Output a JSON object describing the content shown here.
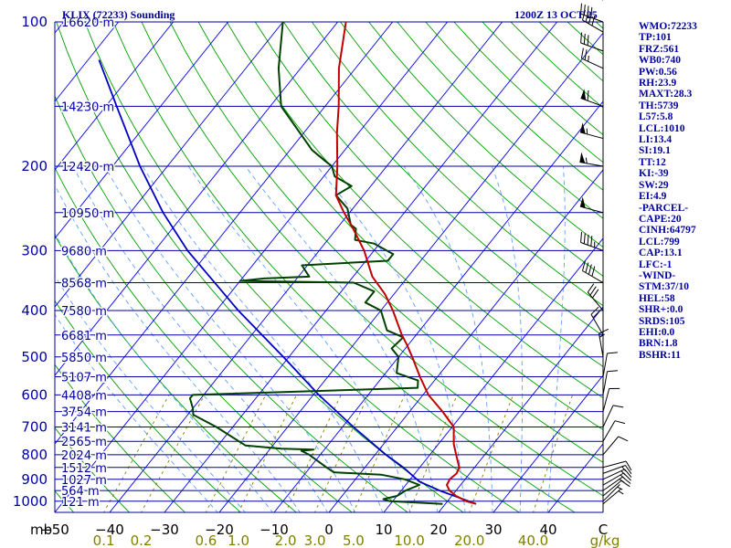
{
  "header": {
    "title": "KLIX (72233) Sounding",
    "datetime": "1200Z 13 OCT 25"
  },
  "colors": {
    "isobar": "#0000a0",
    "isotherm": "#0000ff",
    "dry_adiabat": "#00a000",
    "moist_adiabat": "#60a0ff",
    "mixing_ratio": "#808000",
    "temperature": "#c00000",
    "dewpoint": "#004000",
    "parcel": "#0000c0",
    "text": "#0000a0",
    "axis_x": "#000000",
    "axis_mr": "#808000"
  },
  "chart_data": {
    "type": "skew-t",
    "title": "KLIX (72233) Sounding",
    "subtitle": "1200Z 13 OCT 25",
    "pressure_unit": "mb",
    "mixing_ratio_unit": "g/kg",
    "pressure_ticks": [
      "100",
      "200",
      "300",
      "400",
      "500",
      "600",
      "700",
      "800",
      "900",
      "1000"
    ],
    "temperature_ticks": [
      "−50",
      "−40",
      "−30",
      "−20",
      "−10",
      "0",
      "10",
      "20",
      "30",
      "40",
      "C"
    ],
    "mixing_ratio_ticks": [
      "0.1",
      "0.2",
      "0.6",
      "1.0",
      "2.0",
      "3.0",
      "5.0",
      "10.0",
      "20.0",
      "40.0"
    ],
    "height_labels": [
      {
        "p": 100,
        "text": "16620 m"
      },
      {
        "p": 150,
        "text": "14230 m"
      },
      {
        "p": 200,
        "text": "12420 m"
      },
      {
        "p": 250,
        "text": "10950 m"
      },
      {
        "p": 300,
        "text": "9680 m"
      },
      {
        "p": 350,
        "text": "8568 m"
      },
      {
        "p": 400,
        "text": "7580 m"
      },
      {
        "p": 450,
        "text": "6681 m"
      },
      {
        "p": 500,
        "text": "5850 m"
      },
      {
        "p": 550,
        "text": "5107 m"
      },
      {
        "p": 600,
        "text": "4408 m"
      },
      {
        "p": 650,
        "text": "3754 m"
      },
      {
        "p": 700,
        "text": "3141 m"
      },
      {
        "p": 750,
        "text": "2565 m"
      },
      {
        "p": 800,
        "text": "2024 m"
      },
      {
        "p": 850,
        "text": "1512 m"
      },
      {
        "p": 900,
        "text": "1027 m"
      },
      {
        "p": 950,
        "text": "564 m"
      },
      {
        "p": 1000,
        "text": "121 m"
      }
    ],
    "temperature_profile": [
      {
        "p": 1013,
        "t": 25.6
      },
      {
        "p": 1000,
        "t": 23.4
      },
      {
        "p": 975,
        "t": 20.8
      },
      {
        "p": 950,
        "t": 18.8
      },
      {
        "p": 925,
        "t": 17.5
      },
      {
        "p": 900,
        "t": 17.2
      },
      {
        "p": 875,
        "t": 17.6
      },
      {
        "p": 850,
        "t": 17.2
      },
      {
        "p": 800,
        "t": 14.8
      },
      {
        "p": 760,
        "t": 12.8
      },
      {
        "p": 700,
        "t": 10.3
      },
      {
        "p": 650,
        "t": 6.0
      },
      {
        "p": 600,
        "t": 1.0
      },
      {
        "p": 550,
        "t": -3.2
      },
      {
        "p": 500,
        "t": -7.5
      },
      {
        "p": 470,
        "t": -10.4
      },
      {
        "p": 450,
        "t": -12.6
      },
      {
        "p": 400,
        "t": -17.8
      },
      {
        "p": 370,
        "t": -21.6
      },
      {
        "p": 340,
        "t": -26.5
      },
      {
        "p": 300,
        "t": -31.8
      },
      {
        "p": 270,
        "t": -37.0
      },
      {
        "p": 250,
        "t": -41.0
      },
      {
        "p": 230,
        "t": -45.0
      },
      {
        "p": 200,
        "t": -49.0
      },
      {
        "p": 170,
        "t": -54.0
      },
      {
        "p": 150,
        "t": -57.5
      },
      {
        "p": 125,
        "t": -63.0
      },
      {
        "p": 100,
        "t": -68.5
      },
      {
        "p": 85,
        "t": -71.0
      }
    ],
    "dewpoint_profile": [
      {
        "p": 1013,
        "t": 19.5
      },
      {
        "p": 1000,
        "t": 9.5
      },
      {
        "p": 990,
        "t": 8.0
      },
      {
        "p": 975,
        "t": 10.0
      },
      {
        "p": 950,
        "t": 10.8
      },
      {
        "p": 925,
        "t": 12.5
      },
      {
        "p": 900,
        "t": 9.0
      },
      {
        "p": 880,
        "t": 4.0
      },
      {
        "p": 870,
        "t": -5.0
      },
      {
        "p": 850,
        "t": -7.0
      },
      {
        "p": 800,
        "t": -12.0
      },
      {
        "p": 785,
        "t": -14.0
      },
      {
        "p": 780,
        "t": -12.0
      },
      {
        "p": 777,
        "t": -18.0
      },
      {
        "p": 765,
        "t": -25.0
      },
      {
        "p": 700,
        "t": -33.0
      },
      {
        "p": 660,
        "t": -39.0
      },
      {
        "p": 640,
        "t": -40.0
      },
      {
        "p": 610,
        "t": -42.0
      },
      {
        "p": 600,
        "t": -42.0
      },
      {
        "p": 580,
        "t": -2.0
      },
      {
        "p": 560,
        "t": -3.0
      },
      {
        "p": 540,
        "t": -8.0
      },
      {
        "p": 500,
        "t": -10.0
      },
      {
        "p": 480,
        "t": -12.5
      },
      {
        "p": 455,
        "t": -12.0
      },
      {
        "p": 440,
        "t": -16.0
      },
      {
        "p": 400,
        "t": -20.0
      },
      {
        "p": 385,
        "t": -24.0
      },
      {
        "p": 365,
        "t": -24.0
      },
      {
        "p": 350,
        "t": -29.0
      },
      {
        "p": 347,
        "t": -50.0
      },
      {
        "p": 343,
        "t": -46.0
      },
      {
        "p": 340,
        "t": -38.0
      },
      {
        "p": 322,
        "t": -41.0
      },
      {
        "p": 315,
        "t": -26.0
      },
      {
        "p": 305,
        "t": -26.0
      },
      {
        "p": 290,
        "t": -31.0
      },
      {
        "p": 285,
        "t": -35.0
      },
      {
        "p": 270,
        "t": -36.5
      },
      {
        "p": 265,
        "t": -38.0
      },
      {
        "p": 245,
        "t": -41.0
      },
      {
        "p": 230,
        "t": -45.0
      },
      {
        "p": 220,
        "t": -43.5
      },
      {
        "p": 210,
        "t": -48.0
      },
      {
        "p": 200,
        "t": -50.0
      },
      {
        "p": 195,
        "t": -52.0
      },
      {
        "p": 185,
        "t": -56.0
      },
      {
        "p": 150,
        "t": -68.0
      },
      {
        "p": 125,
        "t": -74.0
      },
      {
        "p": 100,
        "t": -80.0
      },
      {
        "p": 85,
        "t": -84.0
      }
    ],
    "parcel_path": [
      {
        "p": 1013,
        "t": 25.6
      },
      {
        "p": 950,
        "t": 17.0
      },
      {
        "p": 910,
        "t": 12.0
      },
      {
        "p": 850,
        "t": 7.0
      },
      {
        "p": 800,
        "t": 2.0
      },
      {
        "p": 700,
        "t": -8.0
      },
      {
        "p": 600,
        "t": -19.0
      },
      {
        "p": 500,
        "t": -31.0
      },
      {
        "p": 400,
        "t": -46.0
      },
      {
        "p": 300,
        "t": -64.0
      },
      {
        "p": 250,
        "t": -74.0
      },
      {
        "p": 200,
        "t": -85.0
      },
      {
        "p": 150,
        "t": -98.0
      },
      {
        "p": 120,
        "t": -108.0
      }
    ],
    "wind_barbs": [
      {
        "p": 1013,
        "dir": 50,
        "spd": 5
      },
      {
        "p": 1000,
        "dir": 45,
        "spd": 5
      },
      {
        "p": 975,
        "dir": 50,
        "spd": 10
      },
      {
        "p": 950,
        "dir": 55,
        "spd": 15
      },
      {
        "p": 925,
        "dir": 60,
        "spd": 15
      },
      {
        "p": 900,
        "dir": 65,
        "spd": 15
      },
      {
        "p": 875,
        "dir": 70,
        "spd": 15
      },
      {
        "p": 850,
        "dir": 75,
        "spd": 10
      },
      {
        "p": 800,
        "dir": 40,
        "spd": 10
      },
      {
        "p": 750,
        "dir": 30,
        "spd": 10
      },
      {
        "p": 700,
        "dir": 25,
        "spd": 10
      },
      {
        "p": 650,
        "dir": 15,
        "spd": 10
      },
      {
        "p": 600,
        "dir": 10,
        "spd": 10
      },
      {
        "p": 550,
        "dir": 10,
        "spd": 10
      },
      {
        "p": 500,
        "dir": 350,
        "spd": 15
      },
      {
        "p": 450,
        "dir": 330,
        "spd": 20
      },
      {
        "p": 400,
        "dir": 320,
        "spd": 30
      },
      {
        "p": 350,
        "dir": 300,
        "spd": 40
      },
      {
        "p": 300,
        "dir": 290,
        "spd": 45
      },
      {
        "p": 250,
        "dir": 285,
        "spd": 50
      },
      {
        "p": 200,
        "dir": 280,
        "spd": 55
      },
      {
        "p": 175,
        "dir": 285,
        "spd": 55
      },
      {
        "p": 150,
        "dir": 290,
        "spd": 60
      },
      {
        "p": 125,
        "dir": 295,
        "spd": 25
      },
      {
        "p": 115,
        "dir": 290,
        "spd": 30
      },
      {
        "p": 105,
        "dir": 300,
        "spd": 40
      },
      {
        "p": 100,
        "dir": 290,
        "spd": 40
      },
      {
        "p": 90,
        "dir": 290,
        "spd": 40
      }
    ]
  },
  "stats": [
    "WMO:72233",
    "TP:101",
    "FRZ:561",
    "WB0:740",
    "PW:0.56",
    "RH:23.9",
    "MAXT:28.3",
    "TH:5739",
    "L57:5.8",
    "LCL:1010",
    "LI:13.4",
    "SI:19.1",
    "TT:12",
    "KI:-39",
    "SW:29",
    "EI:4.9",
    "-PARCEL-",
    "CAPE:20",
    "CINH:64797",
    "LCL:799",
    "CAP:13.1",
    "LFC:-1",
    "-WIND-",
    "STM:37/10",
    "HEL:58",
    "SHR+:0.0",
    "SRDS:105",
    "EHI:0.0",
    "BRN:1.8",
    "BSHR:11"
  ]
}
